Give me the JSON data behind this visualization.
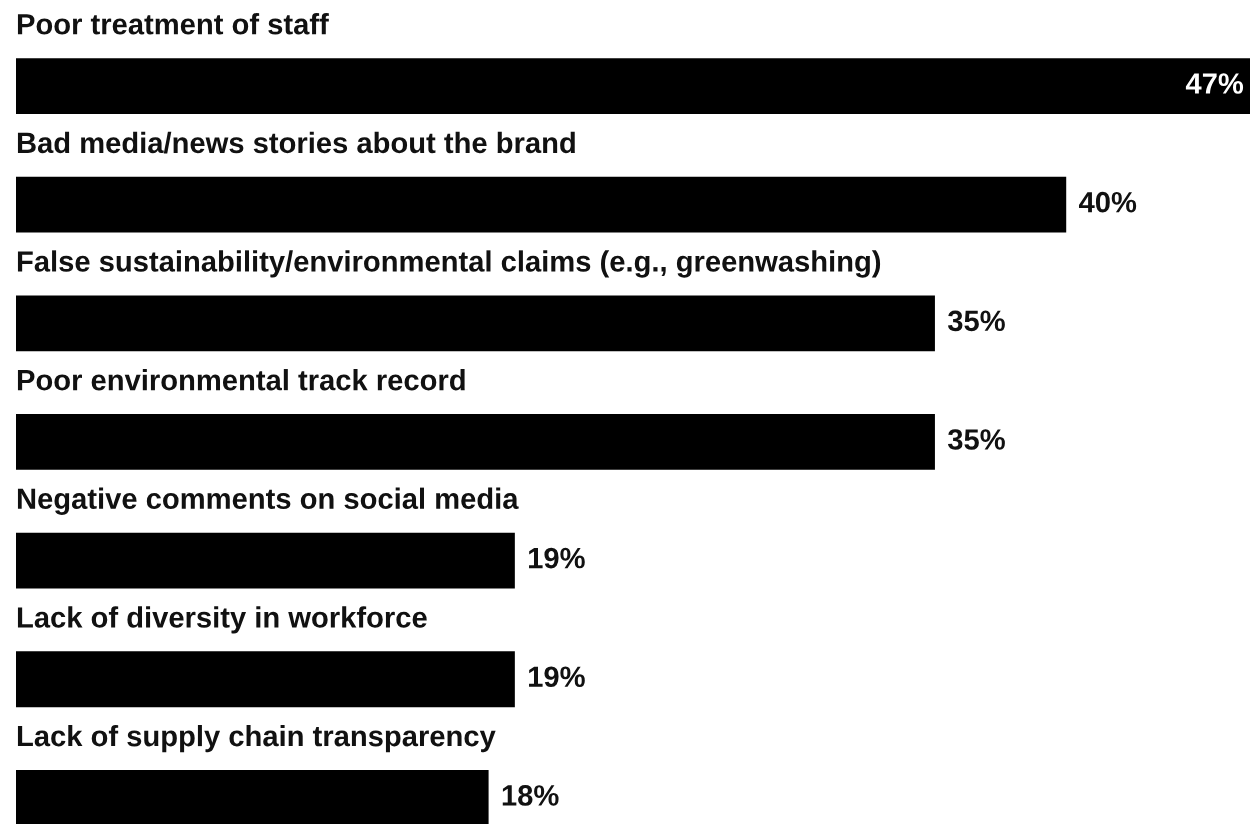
{
  "chart_data": {
    "type": "bar",
    "orientation": "horizontal",
    "categories": [
      "Poor treatment of staff",
      "Bad media/news stories about the brand",
      "False sustainability/environmental claims (e.g., greenwashing)",
      "Poor environmental track record",
      "Negative comments on social media",
      "Lack of diversity in workforce",
      "Lack of supply chain transparency"
    ],
    "values": [
      47,
      40,
      35,
      35,
      19,
      19,
      18
    ],
    "value_labels": [
      "47%",
      "40%",
      "35%",
      "35%",
      "19%",
      "19%",
      "18%"
    ],
    "color": "#000000"
  }
}
